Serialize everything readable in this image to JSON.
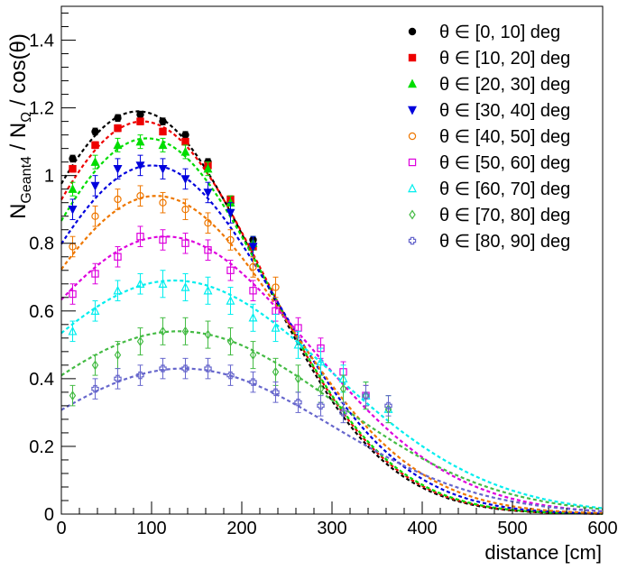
{
  "chart_data": {
    "type": "scatter",
    "title": "",
    "xlabel": "distance [cm]",
    "ylabel": {
      "main": "N",
      "sub1": "Geant4",
      "mid": " / N",
      "sub2": "Ω",
      "tail": " / cos(θ)"
    },
    "xlim": [
      0,
      600
    ],
    "ylim": [
      0,
      1.5
    ],
    "x_ticks": [
      0,
      100,
      200,
      300,
      400,
      500,
      600
    ],
    "x_tick_labels": [
      "0",
      "100",
      "200",
      "300",
      "400",
      "500",
      "600"
    ],
    "y_ticks": [
      0,
      0.2,
      0.4,
      0.6,
      0.8,
      1.0,
      1.2,
      1.4
    ],
    "y_tick_labels": [
      "0",
      "0.2",
      "0.4",
      "0.6",
      "0.8",
      "1",
      "1.2",
      "1.4"
    ],
    "grid": false,
    "legend_position": "top-right",
    "x": [
      12.5,
      37.5,
      62.5,
      87.5,
      112.5,
      137.5,
      162.5,
      187.5,
      212.5,
      237.5,
      262.5,
      287.5,
      312.5,
      337.5,
      362.5
    ],
    "series": [
      {
        "name": "θ ∈ [0, 10] deg",
        "color": "#000000",
        "marker": "circle-filled",
        "values": [
          1.05,
          1.13,
          1.17,
          1.18,
          1.16,
          1.12,
          1.04,
          0.92,
          0.81,
          null,
          null,
          null,
          null,
          null,
          null
        ],
        "errors": [
          0.01,
          0.01,
          0.01,
          0.01,
          0.01,
          0.01,
          0.01,
          0.01,
          0.01,
          null,
          null,
          null,
          null,
          null,
          null
        ],
        "fit_amp": 1.19,
        "fit_mu": 85,
        "fit_sigma": 135,
        "fit_c": 0.0
      },
      {
        "name": "θ ∈ [10, 20] deg",
        "color": "#ee0000",
        "marker": "square-filled",
        "values": [
          1.02,
          1.09,
          1.14,
          1.16,
          1.13,
          1.1,
          1.03,
          0.93,
          0.79,
          null,
          null,
          null,
          null,
          null,
          null
        ],
        "errors": [
          0.01,
          0.01,
          0.01,
          0.01,
          0.01,
          0.01,
          0.01,
          0.01,
          0.01,
          null,
          null,
          null,
          null,
          null,
          null
        ],
        "fit_amp": 1.16,
        "fit_mu": 90,
        "fit_sigma": 135,
        "fit_c": 0.0
      },
      {
        "name": "θ ∈ [20, 30] deg",
        "color": "#00dd00",
        "marker": "triangle-up-filled",
        "values": [
          0.96,
          1.04,
          1.09,
          1.1,
          1.09,
          1.07,
          1.02,
          0.92,
          0.8,
          null,
          null,
          null,
          null,
          null,
          null
        ],
        "errors": [
          0.02,
          0.02,
          0.02,
          0.02,
          0.02,
          0.02,
          0.02,
          0.02,
          0.02,
          null,
          null,
          null,
          null,
          null,
          null
        ],
        "fit_amp": 1.11,
        "fit_mu": 95,
        "fit_sigma": 135,
        "fit_c": 0.0
      },
      {
        "name": "θ ∈ [30, 40] deg",
        "color": "#0000dd",
        "marker": "triangle-down-filled",
        "values": [
          0.9,
          0.97,
          1.02,
          1.03,
          1.02,
          0.99,
          0.95,
          0.89,
          0.79,
          null,
          null,
          null,
          null,
          null,
          null
        ],
        "errors": [
          0.03,
          0.03,
          0.03,
          0.03,
          0.03,
          0.03,
          0.03,
          0.03,
          0.03,
          null,
          null,
          null,
          null,
          null,
          null
        ],
        "fit_amp": 1.03,
        "fit_mu": 100,
        "fit_sigma": 140,
        "fit_c": 0.0
      },
      {
        "name": "θ ∈ [40, 50] deg",
        "color": "#ee7700",
        "marker": "circle-open",
        "values": [
          0.79,
          0.88,
          0.93,
          0.94,
          0.92,
          0.9,
          0.86,
          0.81,
          0.73,
          0.67,
          null,
          null,
          null,
          null,
          null
        ],
        "errors": [
          0.03,
          0.03,
          0.03,
          0.03,
          0.03,
          0.03,
          0.03,
          0.03,
          0.03,
          0.03,
          null,
          null,
          null,
          null,
          null
        ],
        "fit_amp": 0.94,
        "fit_mu": 105,
        "fit_sigma": 145,
        "fit_c": 0.0
      },
      {
        "name": "θ ∈ [50, 60] deg",
        "color": "#dd00dd",
        "marker": "square-open",
        "values": [
          0.65,
          0.71,
          0.76,
          0.82,
          0.81,
          0.8,
          0.78,
          0.72,
          0.66,
          0.6,
          0.55,
          0.49,
          0.42,
          0.35,
          null
        ],
        "errors": [
          0.03,
          0.03,
          0.03,
          0.03,
          0.03,
          0.03,
          0.03,
          0.03,
          0.03,
          0.03,
          0.03,
          0.03,
          0.03,
          0.03,
          null
        ],
        "fit_amp": 0.82,
        "fit_mu": 115,
        "fit_sigma": 160,
        "fit_c": 0.0
      },
      {
        "name": "θ ∈ [60, 70] deg",
        "color": "#00eeee",
        "marker": "triangle-up-open",
        "values": [
          0.54,
          0.6,
          0.66,
          0.68,
          0.68,
          0.67,
          0.66,
          0.63,
          0.58,
          0.55,
          0.5,
          0.45,
          0.4,
          0.35,
          0.31
        ],
        "errors": [
          0.03,
          0.03,
          0.03,
          0.03,
          0.04,
          0.04,
          0.04,
          0.04,
          0.04,
          0.04,
          0.04,
          0.04,
          0.04,
          0.04,
          0.04
        ],
        "fit_amp": 0.69,
        "fit_mu": 125,
        "fit_sigma": 175,
        "fit_c": 0.0
      },
      {
        "name": "θ ∈ [70, 80] deg",
        "color": "#44bb44",
        "marker": "diamond-open",
        "values": [
          0.35,
          0.44,
          0.47,
          0.51,
          0.54,
          0.54,
          0.53,
          0.51,
          0.47,
          0.42,
          0.4,
          0.37,
          0.37,
          0.35,
          0.31
        ],
        "errors": [
          0.03,
          0.03,
          0.04,
          0.04,
          0.04,
          0.04,
          0.04,
          0.04,
          0.04,
          0.04,
          0.04,
          0.04,
          0.04,
          0.04,
          0.04
        ],
        "fit_amp": 0.54,
        "fit_mu": 130,
        "fit_sigma": 175,
        "fit_c": 0.0
      },
      {
        "name": "θ ∈ [80, 90] deg",
        "color": "#6666cc",
        "marker": "cross-open",
        "values": [
          null,
          0.37,
          0.4,
          0.41,
          0.43,
          0.43,
          0.43,
          0.41,
          0.39,
          0.36,
          0.33,
          0.32,
          0.3,
          0.35,
          0.32
        ],
        "errors": [
          null,
          0.03,
          0.03,
          0.03,
          0.03,
          0.03,
          0.03,
          0.03,
          0.03,
          0.03,
          0.03,
          0.03,
          0.03,
          0.03,
          0.03
        ],
        "fit_amp": 0.43,
        "fit_mu": 135,
        "fit_sigma": 165,
        "fit_c": 0.0
      }
    ]
  }
}
